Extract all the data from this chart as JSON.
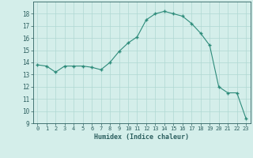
{
  "x": [
    0,
    1,
    2,
    3,
    4,
    5,
    6,
    7,
    8,
    9,
    10,
    11,
    12,
    13,
    14,
    15,
    16,
    17,
    18,
    19,
    20,
    21,
    22,
    23
  ],
  "y": [
    13.8,
    13.7,
    13.2,
    13.7,
    13.7,
    13.7,
    13.6,
    13.4,
    14.0,
    14.9,
    15.6,
    16.1,
    17.5,
    18.0,
    18.2,
    18.0,
    17.8,
    17.2,
    16.4,
    15.4,
    12.0,
    11.5,
    11.5,
    9.4
  ],
  "xlabel": "Humidex (Indice chaleur)",
  "ylim": [
    9,
    19
  ],
  "xlim": [
    -0.5,
    23.5
  ],
  "yticks": [
    9,
    10,
    11,
    12,
    13,
    14,
    15,
    16,
    17,
    18
  ],
  "xticks": [
    0,
    1,
    2,
    3,
    4,
    5,
    6,
    7,
    8,
    9,
    10,
    11,
    12,
    13,
    14,
    15,
    16,
    17,
    18,
    19,
    20,
    21,
    22,
    23
  ],
  "line_color": "#2d8b7a",
  "marker_color": "#2d8b7a",
  "bg_color": "#d4eeea",
  "grid_color": "#b0d8d2",
  "xlabel_color": "#2d6060",
  "tick_color": "#2d6060",
  "axis_color": "#2d6060"
}
